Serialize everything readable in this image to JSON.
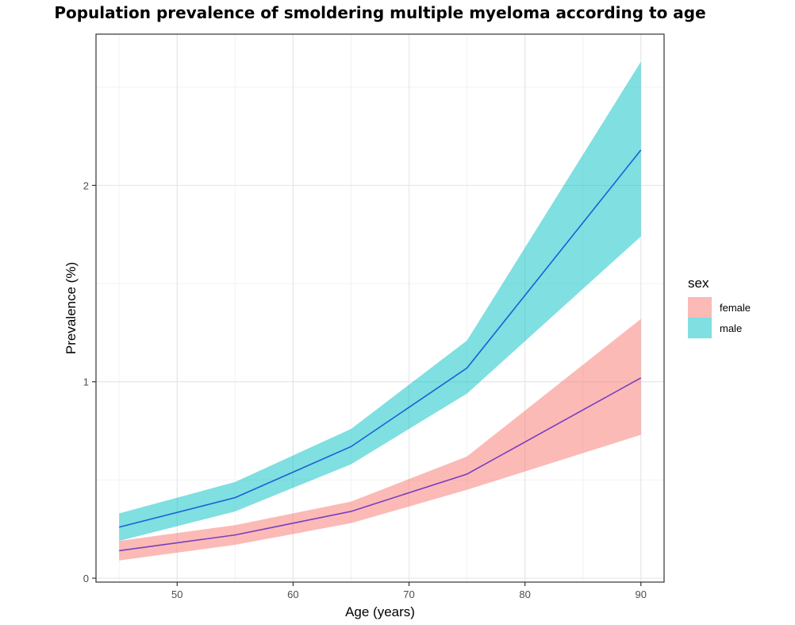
{
  "chart_data": {
    "type": "area",
    "title": "Population prevalence of smoldering multiple myeloma according to age",
    "xlabel": "Age (years)",
    "ylabel": "Prevalence (%)",
    "xlim": [
      43,
      92
    ],
    "ylim": [
      -0.02,
      2.77
    ],
    "x_ticks": [
      50,
      60,
      70,
      80,
      90
    ],
    "y_ticks": [
      0,
      1,
      2
    ],
    "grid": true,
    "legend_title": "sex",
    "legend_position": "right",
    "x": [
      45,
      55,
      65,
      75,
      90
    ],
    "series": [
      {
        "name": "female",
        "fill": "#f8766d",
        "line": "#7b3fbf",
        "values": [
          0.14,
          0.22,
          0.34,
          0.53,
          1.02
        ],
        "lower": [
          0.09,
          0.17,
          0.28,
          0.45,
          0.73
        ],
        "upper": [
          0.19,
          0.27,
          0.39,
          0.62,
          1.32
        ]
      },
      {
        "name": "male",
        "fill": "#00bfc4",
        "line": "#1a5fd6",
        "values": [
          0.26,
          0.41,
          0.67,
          1.07,
          2.18
        ],
        "lower": [
          0.19,
          0.34,
          0.58,
          0.94,
          1.74
        ],
        "upper": [
          0.33,
          0.49,
          0.76,
          1.21,
          2.63
        ]
      }
    ]
  }
}
